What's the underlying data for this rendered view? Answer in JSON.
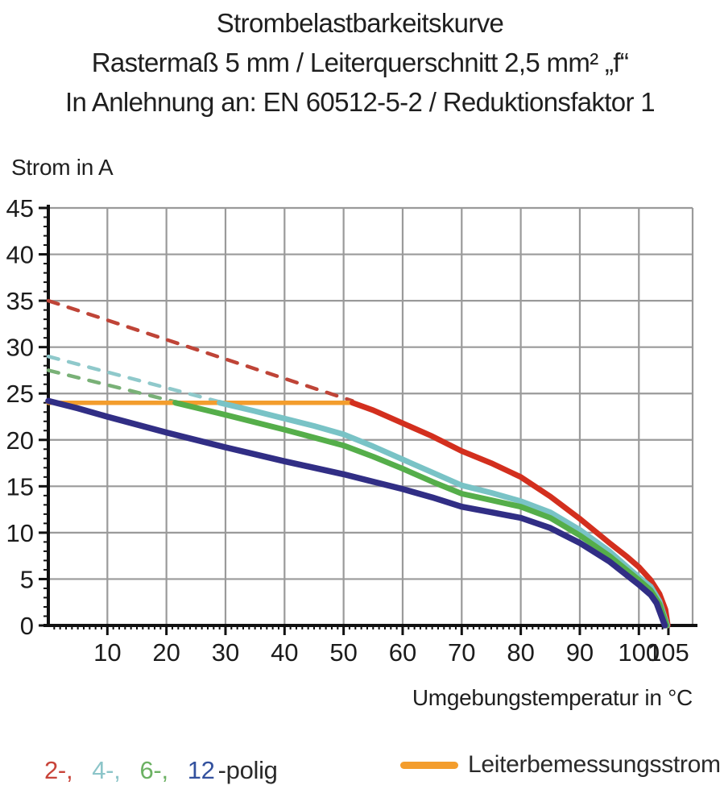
{
  "title": {
    "line1": "Strombelastbarkeitskurve",
    "line2": "Rastermaß 5 mm / Leiterquerschnitt 2,5 mm² „f“",
    "line3": "In Anlehnung an: EN 60512-5-2 / Reduktionsfaktor 1"
  },
  "legend": {
    "poles": [
      {
        "label": "2-,",
        "color": "#c8443a"
      },
      {
        "label": "4-,",
        "color": "#8cc5c9"
      },
      {
        "label": "6-,",
        "color": "#6cb163"
      },
      {
        "label": "12",
        "color": "#33519e"
      }
    ],
    "poles_suffix": "-polig",
    "rated_label": "Leiterbemessungsstrom",
    "rated_color": "#f39d2d"
  },
  "colors": {
    "text": "#1c1c1c",
    "grid": "#9a9a9a",
    "axis": "#111111"
  },
  "chart_data": {
    "type": "line",
    "title": "Strombelastbarkeitskurve",
    "subtitle": "Rastermaß 5 mm / Leiterquerschnitt 2,5 mm² „f“ / In Anlehnung an: EN 60512-5-2 / Reduktionsfaktor 1",
    "xlabel": "Umgebungstemperatur in °C",
    "ylabel": "Strom in A",
    "xlim": [
      0,
      109.1
    ],
    "ylim": [
      0,
      45
    ],
    "grid": true,
    "x_major_ticks": [
      10,
      20,
      30,
      40,
      50,
      60,
      70,
      80,
      90,
      100,
      105
    ],
    "x_gridlines": [
      10,
      20,
      30,
      40,
      50,
      60,
      70,
      80,
      90,
      100
    ],
    "x_minor_step": 1,
    "y_major_ticks": [
      0,
      5,
      10,
      15,
      20,
      25,
      30,
      35,
      40,
      45
    ],
    "y_minor_step": 1,
    "rated_current_A": 24,
    "series": [
      {
        "name": "2-polig-dashed-above-rated",
        "style": "dashed",
        "color": "#bf4437",
        "width": 4.5,
        "points": [
          [
            0,
            35
          ],
          [
            51.5,
            24.2
          ]
        ]
      },
      {
        "name": "4-polig-dashed-above-rated",
        "style": "dashed",
        "color": "#8fc9cb",
        "width": 4.5,
        "points": [
          [
            0,
            29
          ],
          [
            29,
            24.1
          ]
        ]
      },
      {
        "name": "6-polig-dashed-above-rated",
        "style": "dashed",
        "color": "#79b177",
        "width": 4.5,
        "points": [
          [
            0,
            27.5
          ],
          [
            21.5,
            24.1
          ]
        ]
      },
      {
        "name": "Leiterbemessungsstrom",
        "style": "solid",
        "color": "#f39d2d",
        "width": 5.5,
        "points": [
          [
            0,
            24
          ],
          [
            51.5,
            24
          ]
        ]
      },
      {
        "name": "2-polig",
        "style": "solid",
        "color": "#d32f1e",
        "width": 7,
        "points": [
          [
            51.5,
            24
          ],
          [
            55,
            23.2
          ],
          [
            60,
            21.8
          ],
          [
            65,
            20.4
          ],
          [
            70,
            18.8
          ],
          [
            75,
            17.5
          ],
          [
            80,
            16.0
          ],
          [
            85,
            13.9
          ],
          [
            90,
            11.5
          ],
          [
            95,
            8.9
          ],
          [
            98,
            7.4
          ],
          [
            100,
            6.3
          ],
          [
            102,
            4.9
          ],
          [
            103.5,
            3.4
          ],
          [
            104.5,
            1.7
          ],
          [
            104.9,
            0
          ]
        ]
      },
      {
        "name": "4-polig",
        "style": "solid",
        "color": "#79c3c6",
        "width": 7,
        "points": [
          [
            29,
            24
          ],
          [
            35,
            23.1
          ],
          [
            40,
            22.3
          ],
          [
            45,
            21.5
          ],
          [
            50,
            20.6
          ],
          [
            55,
            19.3
          ],
          [
            60,
            17.9
          ],
          [
            65,
            16.5
          ],
          [
            70,
            15.1
          ],
          [
            75,
            14.3
          ],
          [
            80,
            13.4
          ],
          [
            85,
            12.2
          ],
          [
            90,
            10.3
          ],
          [
            95,
            8.0
          ],
          [
            100,
            5.2
          ],
          [
            102,
            4.2
          ],
          [
            103.5,
            2.6
          ],
          [
            104.8,
            0
          ]
        ]
      },
      {
        "name": "6-polig",
        "style": "solid",
        "color": "#55ae4a",
        "width": 7,
        "points": [
          [
            21.5,
            24
          ],
          [
            30,
            22.7
          ],
          [
            40,
            21.1
          ],
          [
            50,
            19.4
          ],
          [
            55,
            18.2
          ],
          [
            60,
            16.9
          ],
          [
            65,
            15.5
          ],
          [
            70,
            14.2
          ],
          [
            75,
            13.5
          ],
          [
            80,
            12.8
          ],
          [
            85,
            11.6
          ],
          [
            90,
            9.7
          ],
          [
            95,
            7.5
          ],
          [
            100,
            4.9
          ],
          [
            102,
            3.8
          ],
          [
            103.5,
            2.3
          ],
          [
            104.7,
            0
          ]
        ]
      },
      {
        "name": "12-polig",
        "style": "solid",
        "color": "#312e85",
        "width": 7.5,
        "points": [
          [
            0,
            24.2
          ],
          [
            5,
            23.4
          ],
          [
            10,
            22.5
          ],
          [
            20,
            20.8
          ],
          [
            30,
            19.2
          ],
          [
            40,
            17.7
          ],
          [
            50,
            16.3
          ],
          [
            55,
            15.5
          ],
          [
            60,
            14.7
          ],
          [
            65,
            13.8
          ],
          [
            70,
            12.8
          ],
          [
            75,
            12.2
          ],
          [
            80,
            11.6
          ],
          [
            85,
            10.5
          ],
          [
            90,
            8.9
          ],
          [
            95,
            6.9
          ],
          [
            100,
            4.4
          ],
          [
            102,
            3.3
          ],
          [
            103,
            2.4
          ],
          [
            104.4,
            0
          ]
        ]
      }
    ]
  }
}
